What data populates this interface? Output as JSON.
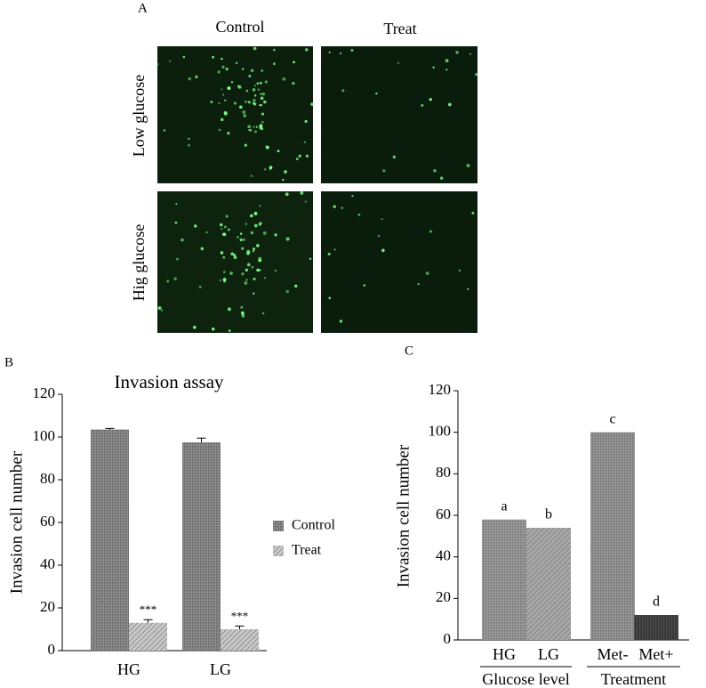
{
  "panel_a": {
    "label": "A",
    "columns": [
      "Control",
      "Treat"
    ],
    "rows": [
      "Low glucose",
      "Hig glucose"
    ]
  },
  "chart_data": [
    {
      "type": "bar",
      "panel": "B",
      "title": "Invasion assay",
      "y_label": "Invasion cell number",
      "categories": [
        "HG",
        "LG"
      ],
      "series": [
        {
          "name": "Control",
          "color": "#8a8a8a",
          "values": [
            103.5,
            97.5
          ],
          "errors": [
            0.5,
            2
          ]
        },
        {
          "name": "Treat",
          "color": "#c8c8c8",
          "values": [
            13,
            10
          ],
          "errors": [
            1.5,
            1.5
          ]
        }
      ],
      "annotations": [
        "***",
        "***"
      ],
      "ylim": [
        0,
        120
      ],
      "yticks": [
        0,
        20,
        40,
        60,
        80,
        100,
        120
      ],
      "legend": "right"
    },
    {
      "type": "bar",
      "panel": "C",
      "y_label": "Invasion cell number",
      "categories": [
        "HG",
        "LG",
        "Met-",
        "Met+"
      ],
      "values": [
        58,
        54,
        100,
        12
      ],
      "colors": [
        "#9a9a9a",
        "#a8a8a8",
        "#959595",
        "#4a4a4a"
      ],
      "annotations": [
        "a",
        "b",
        "c",
        "d"
      ],
      "group_labels": [
        "Glucose level",
        "Treatment"
      ],
      "ylim": [
        0,
        120
      ],
      "yticks": [
        0,
        20,
        40,
        60,
        80,
        100,
        120
      ]
    }
  ]
}
